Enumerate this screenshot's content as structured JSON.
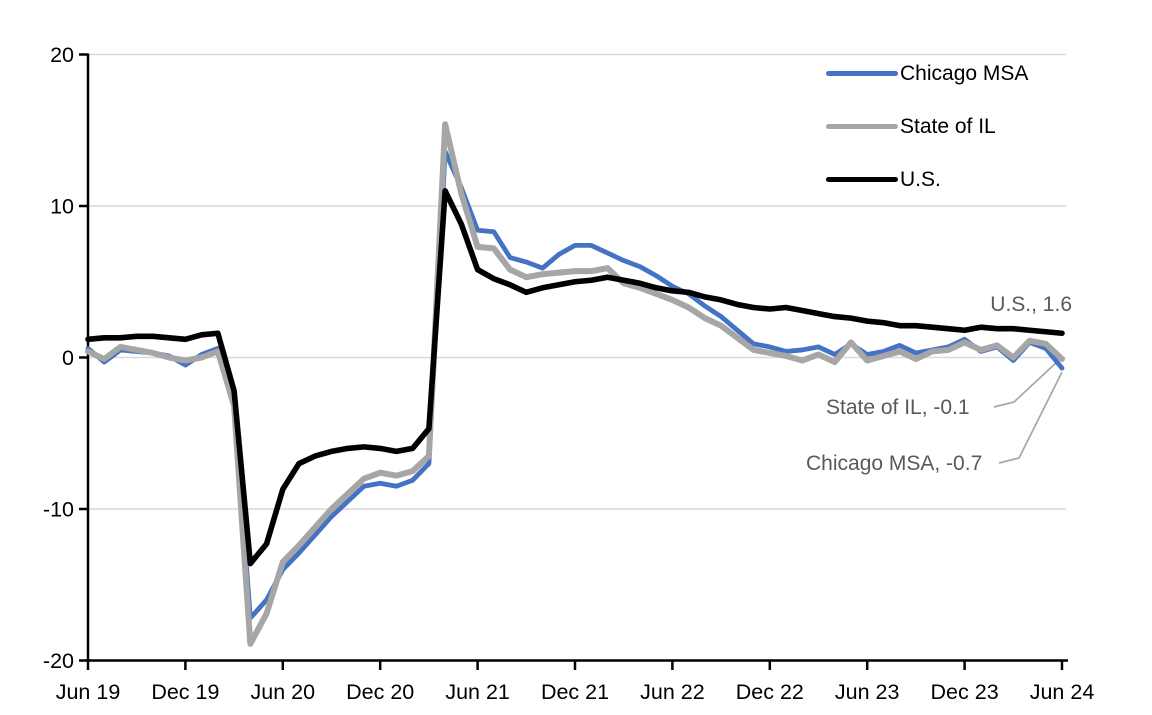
{
  "colors": {
    "chicago_blue": "#4472C4",
    "il_gray": "#A6A6A6",
    "us_black": "#000000",
    "gridline": "#D9D9D9",
    "axis": "#000000",
    "annotation_text": "#595959",
    "leader_line": "#A6A6A6",
    "background": "#FFFFFF"
  },
  "legend": {
    "items": [
      {
        "label": "Chicago MSA"
      },
      {
        "label": "State of IL"
      },
      {
        "label": "U.S."
      }
    ]
  },
  "annotations": {
    "us": {
      "text": "U.S., 1.6",
      "value": 1.6
    },
    "il": {
      "text": "State of IL, -0.1",
      "value": -0.1
    },
    "chicago": {
      "text": "Chicago MSA, -0.7",
      "value": -0.7
    }
  },
  "chart_data": {
    "type": "line",
    "title": "",
    "xlabel": "",
    "ylabel": "",
    "ylim": [
      -20,
      20
    ],
    "y_ticks": [
      20,
      10,
      0,
      -10,
      -20
    ],
    "x_tick_labels": [
      "Jun 19",
      "Dec 19",
      "Jun 20",
      "Dec 20",
      "Jun 21",
      "Dec 21",
      "Jun 22",
      "Dec 22",
      "Jun 23",
      "Dec 23",
      "Jun 24"
    ],
    "grid": "horizontal",
    "legend_position": "top-right",
    "months": [
      "2019-06",
      "2019-07",
      "2019-08",
      "2019-09",
      "2019-10",
      "2019-11",
      "2019-12",
      "2020-01",
      "2020-02",
      "2020-03",
      "2020-04",
      "2020-05",
      "2020-06",
      "2020-07",
      "2020-08",
      "2020-09",
      "2020-10",
      "2020-11",
      "2020-12",
      "2021-01",
      "2021-02",
      "2021-03",
      "2021-04",
      "2021-05",
      "2021-06",
      "2021-07",
      "2021-08",
      "2021-09",
      "2021-10",
      "2021-11",
      "2021-12",
      "2022-01",
      "2022-02",
      "2022-03",
      "2022-04",
      "2022-05",
      "2022-06",
      "2022-07",
      "2022-08",
      "2022-09",
      "2022-10",
      "2022-11",
      "2022-12",
      "2023-01",
      "2023-02",
      "2023-03",
      "2023-04",
      "2023-05",
      "2023-06",
      "2023-07",
      "2023-08",
      "2023-09",
      "2023-10",
      "2023-11",
      "2023-12",
      "2024-01",
      "2024-02",
      "2024-03",
      "2024-04",
      "2024-05",
      "2024-06"
    ],
    "series": [
      {
        "name": "Chicago MSA",
        "color": "#4472C4",
        "values": [
          0.6,
          -0.3,
          0.5,
          0.4,
          0.3,
          0.1,
          -0.5,
          0.2,
          0.6,
          -2.9,
          -17.2,
          -16.0,
          -14.0,
          -12.9,
          -11.7,
          -10.5,
          -9.5,
          -8.5,
          -8.3,
          -8.5,
          -8.1,
          -7.0,
          13.6,
          11.2,
          8.4,
          8.3,
          6.6,
          6.3,
          5.9,
          6.8,
          7.4,
          7.4,
          6.9,
          6.4,
          6.0,
          5.4,
          4.7,
          4.2,
          3.4,
          2.7,
          1.8,
          0.9,
          0.7,
          0.4,
          0.5,
          0.7,
          0.2,
          0.9,
          0.2,
          0.4,
          0.8,
          0.3,
          0.5,
          0.7,
          1.2,
          0.4,
          0.7,
          -0.2,
          1.0,
          0.6,
          -0.7
        ]
      },
      {
        "name": "State of IL",
        "color": "#A6A6A6",
        "values": [
          0.4,
          -0.1,
          0.7,
          0.5,
          0.3,
          0.0,
          -0.2,
          0.0,
          0.4,
          -3.2,
          -18.9,
          -16.9,
          -13.5,
          -12.4,
          -11.2,
          -10.0,
          -9.0,
          -8.0,
          -7.6,
          -7.8,
          -7.5,
          -6.5,
          15.4,
          10.8,
          7.3,
          7.2,
          5.8,
          5.3,
          5.5,
          5.6,
          5.7,
          5.7,
          5.9,
          4.9,
          4.6,
          4.2,
          3.8,
          3.3,
          2.6,
          2.1,
          1.3,
          0.5,
          0.3,
          0.1,
          -0.2,
          0.2,
          -0.3,
          1.0,
          -0.2,
          0.1,
          0.4,
          -0.1,
          0.4,
          0.5,
          1.0,
          0.5,
          0.8,
          0.0,
          1.1,
          0.9,
          -0.1
        ]
      },
      {
        "name": "U.S.",
        "color": "#000000",
        "values": [
          1.2,
          1.3,
          1.3,
          1.4,
          1.4,
          1.3,
          1.2,
          1.5,
          1.6,
          -2.2,
          -13.6,
          -12.3,
          -8.7,
          -7.0,
          -6.5,
          -6.2,
          -6.0,
          -5.9,
          -6.0,
          -6.2,
          -6.0,
          -4.7,
          11.0,
          8.8,
          5.8,
          5.2,
          4.8,
          4.3,
          4.6,
          4.8,
          5.0,
          5.1,
          5.3,
          5.1,
          4.9,
          4.6,
          4.4,
          4.3,
          4.0,
          3.8,
          3.5,
          3.3,
          3.2,
          3.3,
          3.1,
          2.9,
          2.7,
          2.6,
          2.4,
          2.3,
          2.1,
          2.1,
          2.0,
          1.9,
          1.8,
          2.0,
          1.9,
          1.9,
          1.8,
          1.7,
          1.6
        ]
      }
    ]
  }
}
